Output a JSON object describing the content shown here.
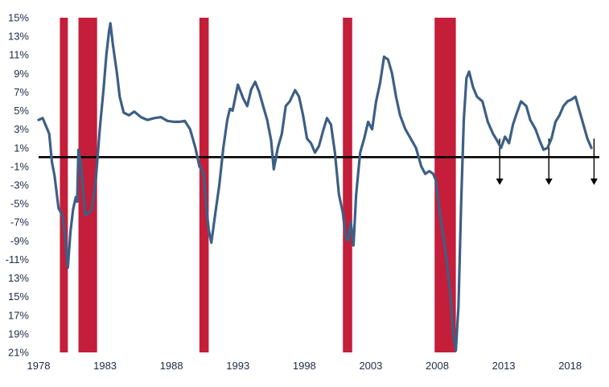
{
  "chart_data": {
    "type": "line",
    "title": "",
    "xlabel": "",
    "ylabel": "",
    "xlim": [
      1978,
      2020.2
    ],
    "ylim": [
      -21,
      15
    ],
    "grid": false,
    "legend": "none",
    "colors": {
      "line": "#3d5f85",
      "recession": "#c41e3a",
      "zero_line": "#000000",
      "text": "#1f2a44"
    },
    "x_ticks": [
      {
        "value": 1978,
        "label": "1978"
      },
      {
        "value": 1983,
        "label": "1983"
      },
      {
        "value": 1988,
        "label": "1988"
      },
      {
        "value": 1993,
        "label": "1993"
      },
      {
        "value": 1998,
        "label": "1998"
      },
      {
        "value": 2003,
        "label": "2003"
      },
      {
        "value": 2008,
        "label": "2008"
      },
      {
        "value": 2013,
        "label": "2013"
      },
      {
        "value": 2018,
        "label": "2018"
      }
    ],
    "y_ticks": [
      {
        "value": 15,
        "label": "15%"
      },
      {
        "value": 13,
        "label": "13%"
      },
      {
        "value": 11,
        "label": "11%"
      },
      {
        "value": 9,
        "label": "9%"
      },
      {
        "value": 7,
        "label": "7%"
      },
      {
        "value": 5,
        "label": "5%"
      },
      {
        "value": 3,
        "label": "3%"
      },
      {
        "value": 1,
        "label": "1%"
      },
      {
        "value": -1,
        "label": "-1%"
      },
      {
        "value": -3,
        "label": "-3%"
      },
      {
        "value": -5,
        "label": "-5%"
      },
      {
        "value": -7,
        "label": "-7%"
      },
      {
        "value": -9,
        "label": "-9%"
      },
      {
        "value": -11,
        "label": "-11%"
      },
      {
        "value": -13,
        "label": "13%"
      },
      {
        "value": -15,
        "label": "15%"
      },
      {
        "value": -17,
        "label": "17%"
      },
      {
        "value": -19,
        "label": "19%"
      },
      {
        "value": -21,
        "label": "21%"
      }
    ],
    "reference_line": 0,
    "recessions": [
      [
        1979.6,
        1980.2
      ],
      [
        1981.0,
        1982.4
      ],
      [
        1990.1,
        1990.8
      ],
      [
        2000.9,
        2001.6
      ],
      [
        2007.8,
        2009.4
      ]
    ],
    "annotation_arrows": [
      {
        "x": 2012.7,
        "y_top": 2.0,
        "y_bottom": -2.9
      },
      {
        "x": 2016.4,
        "y_top": 2.0,
        "y_bottom": -2.9
      },
      {
        "x": 2019.8,
        "y_top": 2.0,
        "y_bottom": -2.9
      }
    ],
    "series": [
      {
        "x": [
          1978.0,
          1978.3,
          1978.6,
          1978.8,
          1979.0,
          1979.2,
          1979.5,
          1979.8,
          1980.0,
          1980.2,
          1980.4,
          1980.6,
          1980.8,
          1980.9,
          1981.0,
          1981.2,
          1981.5,
          1981.8,
          1982.0,
          1982.3,
          1982.6,
          1982.9,
          1983.1,
          1983.3,
          1983.4,
          1983.6,
          1983.9,
          1984.1,
          1984.4,
          1984.8,
          1985.2,
          1985.7,
          1986.2,
          1986.7,
          1987.2,
          1987.7,
          1988.2,
          1988.6,
          1989.0,
          1989.4,
          1989.8,
          1990.1,
          1990.4,
          1990.6,
          1990.8,
          1991.0,
          1991.3,
          1991.6,
          1991.9,
          1992.2,
          1992.4,
          1992.6,
          1993.0,
          1993.4,
          1993.7,
          1994.0,
          1994.3,
          1994.6,
          1994.9,
          1995.2,
          1995.5,
          1995.7,
          1996.0,
          1996.3,
          1996.6,
          1996.9,
          1997.3,
          1997.6,
          1997.9,
          1998.2,
          1998.5,
          1998.8,
          1999.1,
          1999.4,
          1999.7,
          2000.0,
          2000.3,
          2000.6,
          2000.9,
          2001.1,
          2001.3,
          2001.5,
          2001.7,
          2001.9,
          2002.2,
          2002.5,
          2002.8,
          2003.1,
          2003.4,
          2003.7,
          2004.0,
          2004.3,
          2004.6,
          2004.9,
          2005.2,
          2005.6,
          2006.0,
          2006.4,
          2006.8,
          2007.1,
          2007.4,
          2007.7,
          2007.9,
          2008.1,
          2008.4,
          2008.7,
          2009.0,
          2009.2,
          2009.4,
          2009.6,
          2009.8,
          2010.0,
          2010.2,
          2010.4,
          2010.7,
          2011.0,
          2011.4,
          2011.8,
          2012.2,
          2012.5,
          2012.8,
          2013.1,
          2013.4,
          2013.7,
          2014.0,
          2014.3,
          2014.7,
          2015.0,
          2015.4,
          2015.7,
          2016.0,
          2016.3,
          2016.6,
          2016.9,
          2017.2,
          2017.5,
          2017.8,
          2018.1,
          2018.4,
          2018.7,
          2019.0,
          2019.3,
          2019.6
        ],
        "y": [
          4.0,
          4.2,
          3.2,
          2.5,
          -0.5,
          -2.0,
          -5.5,
          -6.3,
          -8.5,
          -11.9,
          -8.0,
          -5.6,
          -4.3,
          -4.8,
          0.8,
          -1.0,
          -6.2,
          -6.0,
          -5.6,
          -2.5,
          3.0,
          7.5,
          11.0,
          13.5,
          14.4,
          12.0,
          9.0,
          6.5,
          4.8,
          4.5,
          4.9,
          4.3,
          4.0,
          4.2,
          4.3,
          3.9,
          3.8,
          3.8,
          3.9,
          3.0,
          1.0,
          -1.0,
          -1.6,
          -5.0,
          -7.8,
          -9.2,
          -6.0,
          -3.0,
          1.0,
          4.0,
          5.2,
          5.0,
          7.8,
          6.3,
          5.5,
          7.3,
          8.1,
          7.0,
          5.5,
          4.0,
          1.8,
          -1.3,
          1.0,
          2.5,
          5.5,
          6.0,
          7.2,
          6.5,
          4.5,
          2.0,
          1.5,
          0.5,
          1.2,
          2.8,
          4.2,
          3.5,
          0.5,
          -4.0,
          -6.0,
          -8.5,
          -9.0,
          -7.0,
          -9.5,
          -4.0,
          0.5,
          2.0,
          3.8,
          3.0,
          6.0,
          8.0,
          10.8,
          10.5,
          9.0,
          6.5,
          4.5,
          3.0,
          2.0,
          1.0,
          -1.0,
          -1.8,
          -1.5,
          -1.8,
          -2.5,
          -5.0,
          -8.0,
          -11.0,
          -15.0,
          -19.0,
          -20.8,
          -16.0,
          -5.0,
          4.0,
          8.5,
          9.2,
          7.5,
          6.5,
          6.0,
          3.8,
          2.5,
          1.8,
          1.0,
          2.2,
          1.5,
          3.5,
          4.8,
          6.0,
          5.5,
          4.0,
          3.0,
          1.8,
          0.8,
          1.0,
          2.0,
          3.8,
          4.5,
          5.5,
          6.0,
          6.2,
          6.5,
          5.0,
          3.5,
          2.0,
          1.0
        ]
      }
    ]
  }
}
